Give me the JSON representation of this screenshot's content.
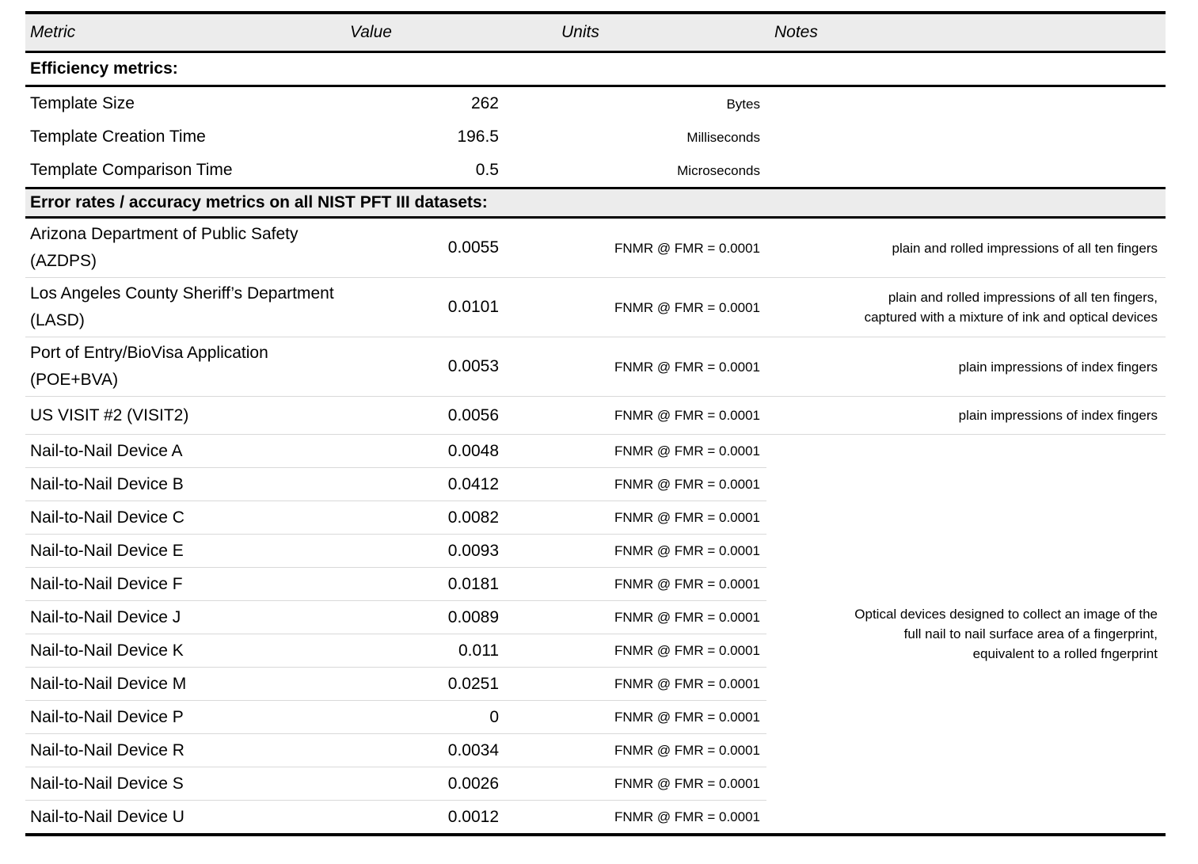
{
  "table": {
    "columns": [
      "Metric",
      "Value",
      "Units",
      "Notes"
    ],
    "colors": {
      "header_background": "#ececec",
      "section_background": "#ececec",
      "rule": "#000000",
      "row_separator": "#d9d9d9"
    },
    "sections": [
      {
        "title": "Efficiency metrics:",
        "rows": [
          {
            "metric": "Template Size",
            "value": "262",
            "units": "Bytes",
            "notes": ""
          },
          {
            "metric": "Template Creation Time",
            "value": "196.5",
            "units": "Milliseconds",
            "notes": ""
          },
          {
            "metric": "Template Comparison Time",
            "value": "0.5",
            "units": "Microseconds",
            "notes": ""
          }
        ]
      },
      {
        "title": "Error rates / accuracy metrics on all NIST PFT III datasets:",
        "rows": [
          {
            "metric": "Arizona Department of Public Safety (AZDPS)",
            "value": "0.0055",
            "units": "FNMR @ FMR = 0.0001",
            "notes": "plain and rolled impressions of all ten fingers"
          },
          {
            "metric": "Los Angeles County Sheriff’s Department (LASD)",
            "value": "0.0101",
            "units": "FNMR @ FMR = 0.0001",
            "notes": "plain and rolled impressions of all ten fingers,\ncaptured with a mixture of ink and optical devices"
          },
          {
            "metric": "Port of Entry/BioVisa Application (POE+BVA)",
            "value": "0.0053",
            "units": "FNMR @ FMR = 0.0001",
            "notes": "plain impressions of index fingers"
          },
          {
            "metric": "US VISIT #2 (VISIT2)",
            "value": "0.0056",
            "units": "FNMR @ FMR = 0.0001",
            "notes": "plain impressions of index fingers"
          }
        ],
        "device_group": {
          "rows": [
            {
              "metric": "Nail-to-Nail Device A",
              "value": "0.0048",
              "units": "FNMR @ FMR = 0.0001"
            },
            {
              "metric": "Nail-to-Nail Device B",
              "value": "0.0412",
              "units": "FNMR @ FMR = 0.0001"
            },
            {
              "metric": "Nail-to-Nail Device C",
              "value": "0.0082",
              "units": "FNMR @ FMR = 0.0001"
            },
            {
              "metric": "Nail-to-Nail Device E",
              "value": "0.0093",
              "units": "FNMR @ FMR = 0.0001"
            },
            {
              "metric": "Nail-to-Nail Device F",
              "value": "0.0181",
              "units": "FNMR @ FMR = 0.0001"
            },
            {
              "metric": "Nail-to-Nail Device J",
              "value": "0.0089",
              "units": "FNMR @ FMR = 0.0001"
            },
            {
              "metric": "Nail-to-Nail Device K",
              "value": "0.011",
              "units": "FNMR @ FMR = 0.0001"
            },
            {
              "metric": "Nail-to-Nail Device M",
              "value": "0.0251",
              "units": "FNMR @ FMR = 0.0001"
            },
            {
              "metric": "Nail-to-Nail Device P",
              "value": "0",
              "units": "FNMR @ FMR = 0.0001"
            },
            {
              "metric": "Nail-to-Nail Device R",
              "value": "0.0034",
              "units": "FNMR @ FMR = 0.0001"
            },
            {
              "metric": "Nail-to-Nail Device S",
              "value": "0.0026",
              "units": "FNMR @ FMR = 0.0001"
            },
            {
              "metric": "Nail-to-Nail Device U",
              "value": "0.0012",
              "units": "FNMR @ FMR = 0.0001"
            }
          ],
          "shared_note": "Optical devices designed to collect an image of the\nfull nail to nail surface area of a fingerprint,\nequivalent to a rolled fngerprint"
        }
      }
    ]
  }
}
